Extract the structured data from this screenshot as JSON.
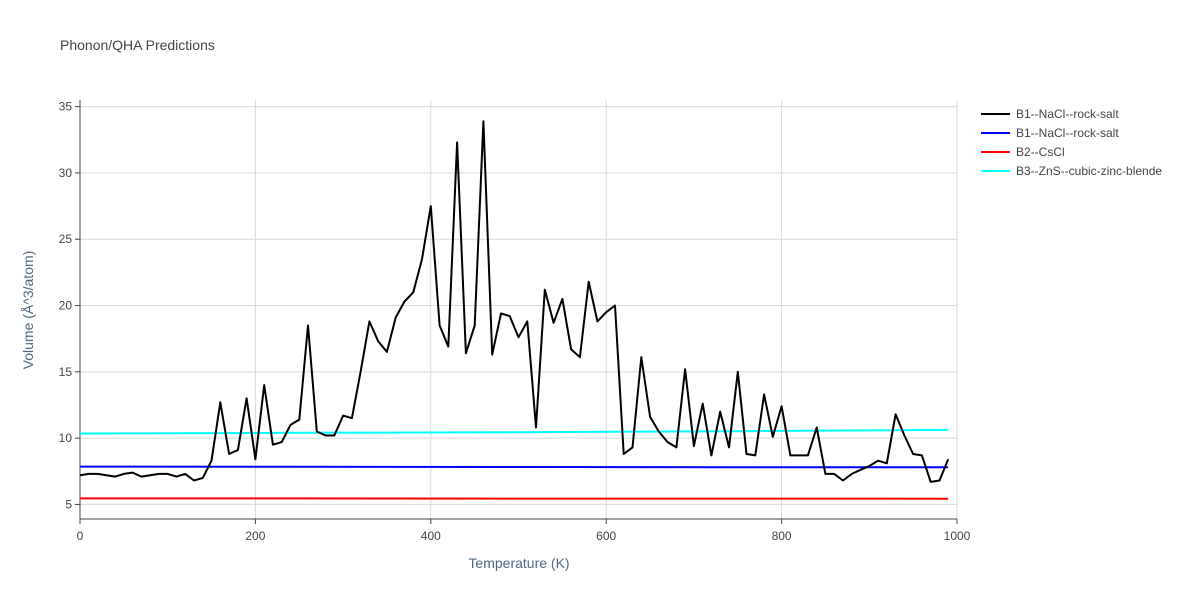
{
  "chart_data": {
    "type": "line",
    "title": "Phonon/QHA Predictions",
    "xlabel": "Temperature (K)",
    "ylabel": "Volume (Å^3/atom)",
    "xlim": [
      0,
      1000
    ],
    "ylim": [
      3.9,
      35.5
    ],
    "xticks": [
      "0",
      "200",
      "400",
      "600",
      "800",
      "1000"
    ],
    "yticks": [
      "5",
      "10",
      "15",
      "20",
      "25",
      "30",
      "35"
    ],
    "grid": true,
    "legend_position": "right",
    "series": [
      {
        "name": "B1--NaCl--rock-salt",
        "color": "#000000",
        "x": [
          0,
          10,
          20,
          30,
          40,
          50,
          60,
          70,
          80,
          90,
          100,
          110,
          120,
          130,
          140,
          150,
          160,
          170,
          180,
          190,
          200,
          210,
          220,
          230,
          240,
          250,
          260,
          270,
          280,
          290,
          300,
          310,
          320,
          330,
          340,
          350,
          360,
          370,
          380,
          390,
          400,
          410,
          420,
          430,
          440,
          450,
          460,
          470,
          480,
          490,
          500,
          510,
          520,
          530,
          540,
          550,
          560,
          570,
          580,
          590,
          600,
          610,
          620,
          630,
          640,
          650,
          660,
          670,
          680,
          690,
          700,
          710,
          720,
          730,
          740,
          750,
          760,
          770,
          780,
          790,
          800,
          810,
          820,
          830,
          840,
          850,
          860,
          870,
          880,
          890,
          900,
          910,
          920,
          930,
          940,
          950,
          960,
          970,
          980,
          990
        ],
        "y": [
          7.2,
          7.3,
          7.3,
          7.2,
          7.1,
          7.3,
          7.4,
          7.1,
          7.2,
          7.3,
          7.3,
          7.1,
          7.3,
          6.8,
          7.0,
          8.3,
          12.7,
          8.8,
          9.1,
          13.0,
          8.4,
          14.0,
          9.5,
          9.7,
          11.0,
          11.4,
          18.5,
          10.5,
          10.2,
          10.2,
          11.7,
          11.5,
          15.0,
          18.8,
          17.3,
          16.5,
          19.1,
          20.3,
          21.0,
          23.5,
          27.5,
          18.5,
          16.9,
          32.3,
          16.4,
          18.5,
          33.9,
          16.3,
          19.4,
          19.2,
          17.6,
          18.8,
          10.8,
          21.2,
          18.7,
          20.5,
          16.7,
          16.1,
          21.8,
          18.8,
          19.5,
          20.0,
          8.8,
          9.3,
          16.1,
          11.6,
          10.5,
          9.7,
          9.3,
          15.2,
          9.4,
          12.6,
          8.7,
          12.0,
          9.3,
          15.0,
          8.8,
          8.7,
          13.3,
          10.1,
          12.4,
          8.7,
          8.7,
          8.7,
          10.8,
          7.3,
          7.3,
          6.8,
          7.3,
          7.6,
          7.9,
          8.3,
          8.1,
          11.8,
          10.2,
          8.8,
          8.7,
          6.7,
          6.8,
          8.4
        ]
      },
      {
        "name": "B1--NaCl--rock-salt",
        "color": "#0000ff",
        "x": [
          0,
          250,
          500,
          750,
          990
        ],
        "y": [
          7.85,
          7.84,
          7.82,
          7.81,
          7.8
        ]
      },
      {
        "name": "B2--CsCl",
        "color": "#ff0000",
        "x": [
          0,
          250,
          500,
          750,
          990
        ],
        "y": [
          5.45,
          5.45,
          5.44,
          5.44,
          5.43
        ]
      },
      {
        "name": "B3--ZnS--cubic-zinc-blende",
        "color": "#00ffff",
        "x": [
          0,
          250,
          500,
          750,
          990
        ],
        "y": [
          10.35,
          10.4,
          10.45,
          10.52,
          10.62
        ]
      }
    ]
  }
}
